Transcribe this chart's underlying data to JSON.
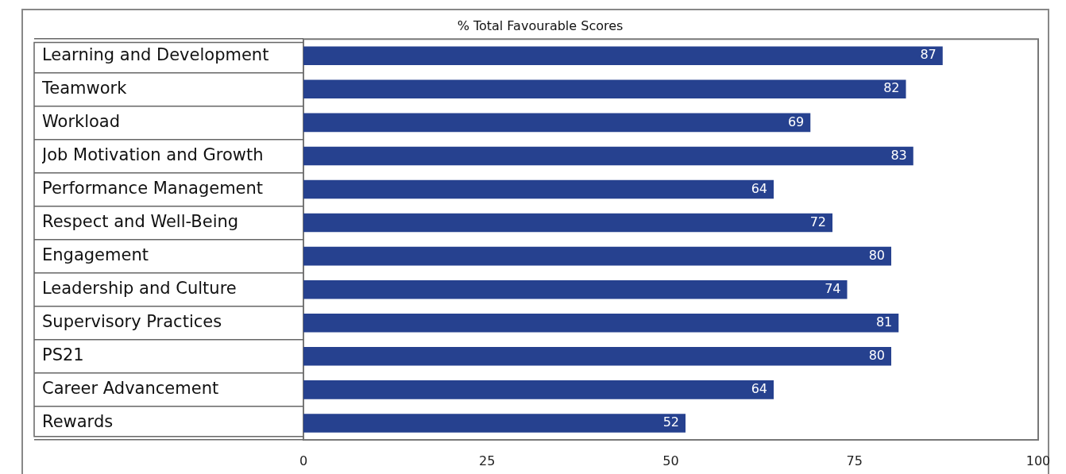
{
  "chart_data": {
    "type": "bar",
    "orientation": "horizontal",
    "title": "% Total Favourable Scores",
    "categories": [
      "Learning and Development",
      "Teamwork",
      "Workload",
      "Job Motivation and Growth",
      "Performance Management",
      "Respect and Well-Being",
      "Engagement",
      "Leadership and Culture",
      "Supervisory Practices",
      "PS21",
      "Career Advancement",
      "Rewards"
    ],
    "values": [
      87,
      82,
      69,
      83,
      64,
      72,
      80,
      74,
      81,
      80,
      64,
      52
    ],
    "color": "#26418f",
    "xlim": [
      0,
      100
    ],
    "xticks": [
      0,
      25,
      50,
      75,
      100
    ],
    "data_labels": true,
    "grid": false,
    "legend": false
  }
}
